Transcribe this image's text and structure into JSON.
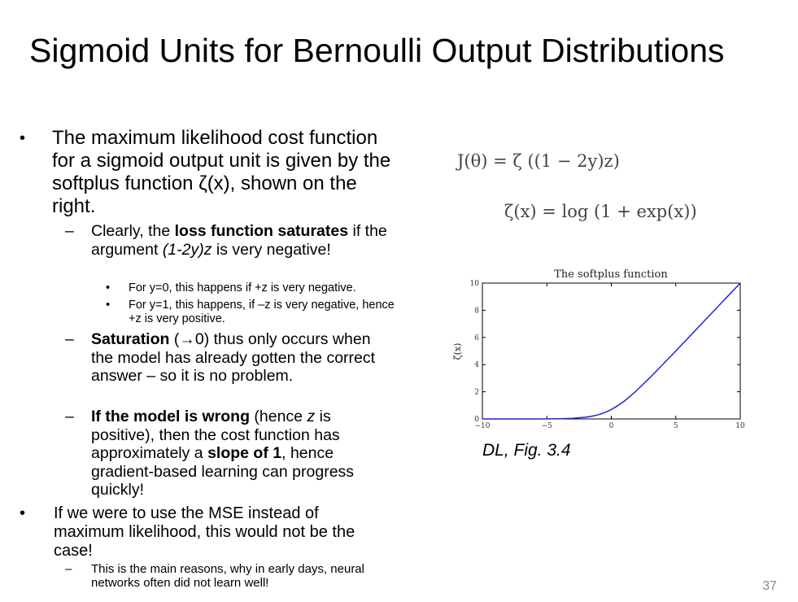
{
  "slide": {
    "title": "Sigmoid Units for Bernoulli Output Distributions",
    "page_number": "37",
    "caption": "DL, Fig. 3.4"
  },
  "bullets": {
    "b1": "The maximum likelihood cost function for a sigmoid output unit is given by the softplus function ζ(x), shown on the right.",
    "b1_1": {
      "pre": "Clearly, the ",
      "bold": "loss function saturates",
      "mid": " if the argument ",
      "italic": "(1-2y)z",
      "post": " is very negative!"
    },
    "b1_1_1": "For y=0, this happens if +z is very negative.",
    "b1_1_2": "For y=1, this happens, if –z is very negative, hence +z is very positive.",
    "b1_2": {
      "bold": "Saturation",
      "post": " (→0) thus only occurs when the model has already gotten the correct answer – so it is no problem."
    },
    "b1_3": {
      "bold1": "If the model is wrong",
      "mid1": " (hence ",
      "italic": "z",
      "mid2": " is positive), then the cost function has approximately a ",
      "bold2": "slope of 1",
      "post": ", hence gradient-based learning can progress quickly!"
    },
    "b2": "If we were to use the MSE instead of maximum likelihood, this would not be the case!",
    "b2_1": "This is the main reasons, why in early days, neural networks often did not learn well!"
  },
  "formulas": {
    "f1": "J(θ) = ζ ((1 − 2y)z)",
    "f2": "ζ(x) = log (1 + exp(x))"
  },
  "chart_data": {
    "type": "line",
    "title": "The softplus function",
    "xlabel": "",
    "ylabel": "ζ(x)",
    "xlim": [
      -10,
      10
    ],
    "ylim": [
      0,
      10
    ],
    "xticks": [
      -10,
      -5,
      0,
      5,
      10
    ],
    "yticks": [
      0,
      2,
      4,
      6,
      8,
      10
    ],
    "grid": false,
    "series": [
      {
        "color": "#2222dd",
        "x": [
          -10,
          -8,
          -6,
          -5,
          -4,
          -3,
          -2,
          -1.5,
          -1,
          -0.5,
          0,
          0.5,
          1,
          1.5,
          2,
          3,
          4,
          5,
          6,
          7,
          8,
          9,
          10
        ],
        "y": [
          4.54e-05,
          0.000335,
          0.00248,
          0.00672,
          0.0181,
          0.0486,
          0.127,
          0.201,
          0.313,
          0.474,
          0.693,
          0.974,
          1.313,
          1.701,
          2.127,
          3.049,
          4.018,
          5.007,
          6.002,
          7.001,
          8.0,
          9.0,
          10.0
        ]
      }
    ]
  }
}
